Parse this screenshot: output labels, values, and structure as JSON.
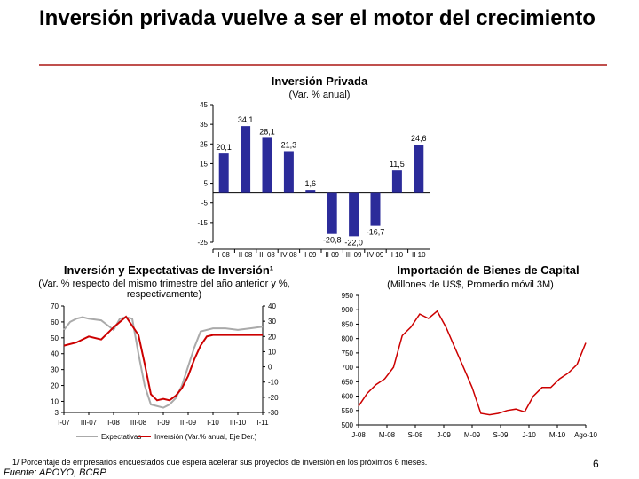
{
  "page": {
    "title": "Inversión privada vuelve a ser el motor del crecimiento",
    "footnote": "1/ Porcentaje de empresarios encuestados que espera acelerar sus proyectos de inversión en los próximos 6 meses.",
    "source": "Fuente: APOYO, BCRP.",
    "page_number": "6",
    "accent_color": "#c0504d"
  },
  "chart_data": [
    {
      "type": "bar",
      "title": "Inversión Privada",
      "subtitle": "(Var. % anual)",
      "categories": [
        "I 08",
        "II 08",
        "III 08",
        "IV 08",
        "I 09",
        "II 09",
        "III 09",
        "IV 09",
        "I 10",
        "II 10"
      ],
      "series": [
        {
          "values": [
            20.1,
            34.1,
            28.1,
            21.3,
            1.6,
            -20.8,
            -22.0,
            -16.7,
            11.5,
            24.6
          ]
        }
      ],
      "value_labels": [
        "20,1",
        "34,1",
        "28,1",
        "21,3",
        "1,6",
        "-20,8",
        "-22,0",
        "-16,7",
        "11,5",
        "24,6"
      ],
      "ylim": [
        -25,
        45
      ],
      "yticks": [
        45,
        35,
        25,
        15,
        5,
        -5,
        -15,
        -25
      ],
      "bar_color": "#2b2b9a"
    },
    {
      "type": "line",
      "title": "Inversión y Expectativas de Inversión¹",
      "subtitle": "(Var. % respecto del mismo trimestre del año anterior y %, respectivamente)",
      "x_tick_labels": [
        "I-07",
        "III-07",
        "I-08",
        "III-08",
        "I-09",
        "III-09",
        "I-10",
        "III-10",
        "I-11"
      ],
      "x_range": [
        0,
        16
      ],
      "y_left": {
        "ticks": [
          70,
          60,
          50,
          40,
          30,
          20,
          10,
          3
        ],
        "ylim": [
          3,
          70
        ]
      },
      "y_right": {
        "ticks": [
          40,
          30,
          20,
          10,
          0,
          -10,
          -20,
          -30
        ],
        "ylim": [
          -30,
          40
        ]
      },
      "legend_placement": "bottom",
      "series": [
        {
          "name": "Expectativas",
          "axis": "left",
          "color": "#aaaaaa",
          "x": [
            0,
            0.5,
            1,
            1.5,
            2,
            3,
            4,
            4.5,
            5,
            5.5,
            6,
            6.5,
            7,
            8,
            8.5,
            9,
            9.5,
            10,
            10.5,
            11,
            12,
            13,
            14,
            15,
            16
          ],
          "y": [
            55,
            60,
            62,
            63,
            62,
            61,
            55,
            62,
            63,
            62,
            40,
            20,
            8,
            6,
            8,
            12,
            20,
            32,
            44,
            54,
            56,
            56,
            55,
            56,
            57
          ]
        },
        {
          "name": "Inversión (Var.% anual, Eje Der.)",
          "axis": "right",
          "color": "#cc0000",
          "x": [
            0,
            1,
            2,
            3,
            4,
            5,
            6,
            6.5,
            7,
            7.5,
            8,
            8.5,
            9,
            9.5,
            10,
            10.5,
            11,
            11.5,
            12,
            13,
            14,
            15,
            16
          ],
          "y": [
            14,
            16,
            20,
            18,
            26,
            33,
            21,
            2,
            -18,
            -22,
            -21,
            -22,
            -19,
            -14,
            -6,
            5,
            14,
            20,
            21,
            21,
            21,
            21,
            21
          ]
        }
      ]
    },
    {
      "type": "line",
      "title": "Importación de Bienes de Capital",
      "subtitle": "(Millones de US$, Promedio móvil 3M)",
      "x_tick_labels": [
        "J-08",
        "M-08",
        "S-08",
        "J-09",
        "M-09",
        "S-09",
        "J-10",
        "M-10",
        "Ago-10"
      ],
      "x_range": [
        0,
        26
      ],
      "ylim": [
        500,
        950
      ],
      "yticks": [
        950,
        900,
        850,
        800,
        750,
        700,
        650,
        600,
        550,
        500
      ],
      "series": [
        {
          "color": "#cc0000",
          "x": [
            0,
            1,
            2,
            3,
            4,
            5,
            6,
            7,
            8,
            9,
            10,
            11,
            12,
            13,
            14,
            15,
            16,
            17,
            18,
            19,
            20,
            21,
            22,
            23,
            24,
            25,
            26
          ],
          "y": [
            565,
            610,
            640,
            660,
            700,
            810,
            840,
            885,
            870,
            895,
            840,
            770,
            700,
            630,
            540,
            535,
            540,
            550,
            555,
            545,
            600,
            630,
            630,
            660,
            680,
            710,
            785
          ]
        }
      ]
    }
  ]
}
